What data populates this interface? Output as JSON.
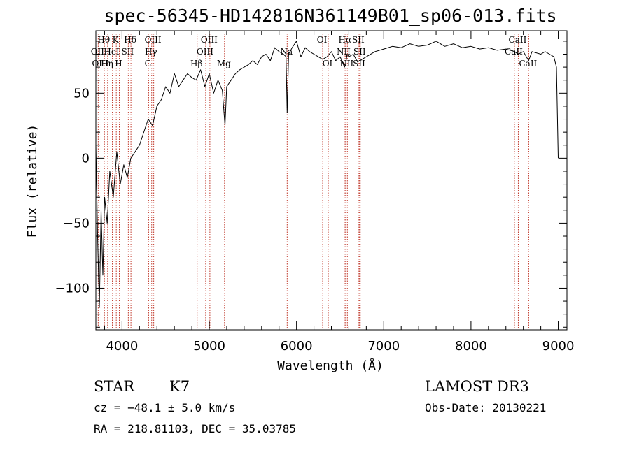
{
  "chart_data": {
    "type": "line",
    "title": "spec-56345-HD142816N361149B01_sp06-013.fits",
    "xlabel": "Wavelength (Å)",
    "ylabel": "Flux (relative)",
    "xlim": [
      3700,
      9100
    ],
    "ylim": [
      -132,
      98
    ],
    "xticks": [
      {
        "value": 4000,
        "label": "4000"
      },
      {
        "value": 5000,
        "label": "5000"
      },
      {
        "value": 6000,
        "label": "6000"
      },
      {
        "value": 7000,
        "label": "7000"
      },
      {
        "value": 8000,
        "label": "8000"
      },
      {
        "value": 9000,
        "label": "9000"
      }
    ],
    "yticks": [
      {
        "value": -100,
        "label": "−100"
      },
      {
        "value": -50,
        "label": "−50"
      },
      {
        "value": 0,
        "label": "0"
      },
      {
        "value": 50,
        "label": "50"
      }
    ],
    "series": [
      {
        "name": "flux",
        "x": [
          3700,
          3720,
          3740,
          3760,
          3780,
          3800,
          3830,
          3860,
          3900,
          3940,
          3980,
          4020,
          4060,
          4100,
          4150,
          4200,
          4250,
          4300,
          4350,
          4400,
          4450,
          4500,
          4550,
          4600,
          4650,
          4700,
          4750,
          4800,
          4850,
          4900,
          4950,
          5000,
          5050,
          5100,
          5150,
          5180,
          5200,
          5250,
          5300,
          5350,
          5400,
          5450,
          5500,
          5550,
          5600,
          5650,
          5700,
          5750,
          5800,
          5850,
          5880,
          5893,
          5910,
          5950,
          6000,
          6050,
          6100,
          6150,
          6200,
          6250,
          6300,
          6350,
          6400,
          6450,
          6500,
          6550,
          6563,
          6580,
          6600,
          6650,
          6700,
          6750,
          6800,
          6900,
          7000,
          7100,
          7200,
          7300,
          7400,
          7500,
          7600,
          7700,
          7800,
          7900,
          8000,
          8100,
          8200,
          8300,
          8400,
          8500,
          8540,
          8600,
          8660,
          8700,
          8800,
          8850,
          8900,
          8950,
          8980,
          9000
        ],
        "y": [
          10,
          -60,
          -115,
          -40,
          -90,
          -30,
          -50,
          -10,
          -30,
          5,
          -20,
          -5,
          -15,
          0,
          5,
          10,
          20,
          30,
          25,
          40,
          45,
          55,
          50,
          65,
          55,
          60,
          65,
          62,
          60,
          68,
          55,
          65,
          50,
          60,
          52,
          25,
          55,
          60,
          65,
          68,
          70,
          72,
          75,
          72,
          78,
          80,
          75,
          85,
          82,
          80,
          78,
          35,
          80,
          85,
          90,
          78,
          85,
          82,
          80,
          78,
          76,
          78,
          82,
          75,
          78,
          70,
          72,
          80,
          78,
          80,
          74,
          76,
          78,
          82,
          84,
          86,
          85,
          88,
          86,
          87,
          90,
          86,
          88,
          85,
          86,
          84,
          85,
          83,
          84,
          82,
          80,
          82,
          75,
          82,
          80,
          82,
          80,
          78,
          70,
          0
        ]
      }
    ],
    "spectral_lines": [
      {
        "label": "Hθ",
        "wavelength": 3798,
        "row": 0
      },
      {
        "label": "OII",
        "wavelength": 3727,
        "row": 1
      },
      {
        "label": "OIII",
        "wavelength": 3760,
        "row": 2
      },
      {
        "label": "K",
        "wavelength": 3934,
        "row": 0
      },
      {
        "label": "HeI",
        "wavelength": 3889,
        "row": 1
      },
      {
        "label": "Hη",
        "wavelength": 3835,
        "row": 2
      },
      {
        "label": "Hδ",
        "wavelength": 4102,
        "row": 0
      },
      {
        "label": "SII",
        "wavelength": 4072,
        "row": 1
      },
      {
        "label": "H",
        "wavelength": 3969,
        "row": 2
      },
      {
        "label": "OIII",
        "wavelength": 4363,
        "row": 0
      },
      {
        "label": "Hγ",
        "wavelength": 4340,
        "row": 1
      },
      {
        "label": "G",
        "wavelength": 4305,
        "row": 2
      },
      {
        "label": "Hβ",
        "wavelength": 4861,
        "row": 2
      },
      {
        "label": "OIII",
        "wavelength": 5007,
        "row": 0
      },
      {
        "label": "OIII",
        "wavelength": 4959,
        "row": 1
      },
      {
        "label": "Mg",
        "wavelength": 5175,
        "row": 2
      },
      {
        "label": "Na",
        "wavelength": 5893,
        "row": 1
      },
      {
        "label": "OI",
        "wavelength": 6300,
        "row": 0
      },
      {
        "label": "OI",
        "wavelength": 6364,
        "row": 2
      },
      {
        "label": "Hα",
        "wavelength": 6563,
        "row": 0
      },
      {
        "label": "NII",
        "wavelength": 6548,
        "row": 1
      },
      {
        "label": "NII",
        "wavelength": 6583,
        "row": 2
      },
      {
        "label": "SII",
        "wavelength": 6716,
        "row": 0
      },
      {
        "label": "SII",
        "wavelength": 6731,
        "row": 1
      },
      {
        "label": "SII",
        "wavelength": 6725,
        "row": 2
      },
      {
        "label": "CaII",
        "wavelength": 8542,
        "row": 0
      },
      {
        "label": "CaII",
        "wavelength": 8498,
        "row": 1
      },
      {
        "label": "CaII",
        "wavelength": 8662,
        "row": 2
      }
    ]
  },
  "info": {
    "class_label": "STAR",
    "subclass": "K7",
    "survey": "LAMOST DR3",
    "cz": "cz = −48.1 ± 5.0 km/s",
    "obs_date": "Obs-Date: 20130221",
    "radec": "RA = 218.81103, DEC =  35.03785"
  }
}
